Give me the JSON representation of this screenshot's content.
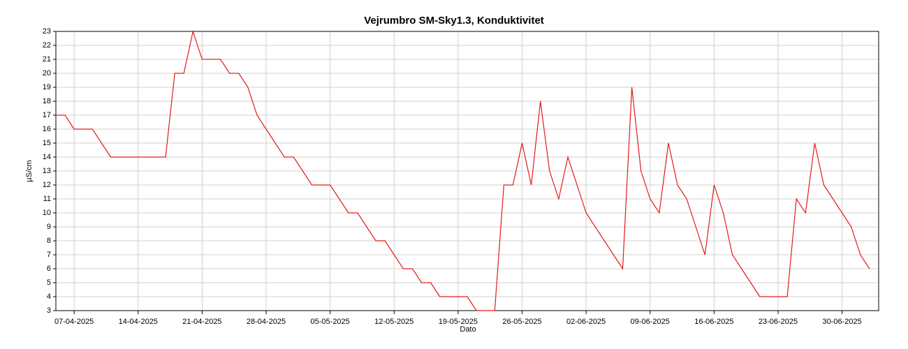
{
  "chart_data": {
    "type": "line",
    "title": "Vejrumbro SM-Sky1.3, Konduktivitet",
    "x_label": "Dato",
    "y_label": "µS/cm",
    "color": "#e41a1a",
    "grid": true,
    "x": [
      "05-04-2025",
      "06-04-2025",
      "07-04-2025",
      "08-04-2025",
      "09-04-2025",
      "10-04-2025",
      "11-04-2025",
      "12-04-2025",
      "13-04-2025",
      "14-04-2025",
      "15-04-2025",
      "16-04-2025",
      "17-04-2025",
      "18-04-2025",
      "19-04-2025",
      "20-04-2025",
      "21-04-2025",
      "22-04-2025",
      "23-04-2025",
      "24-04-2025",
      "25-04-2025",
      "26-04-2025",
      "27-04-2025",
      "28-04-2025",
      "29-04-2025",
      "30-04-2025",
      "01-05-2025",
      "02-05-2025",
      "03-05-2025",
      "04-05-2025",
      "05-05-2025",
      "06-05-2025",
      "07-05-2025",
      "08-05-2025",
      "09-05-2025",
      "10-05-2025",
      "11-05-2025",
      "12-05-2025",
      "13-05-2025",
      "14-05-2025",
      "15-05-2025",
      "16-05-2025",
      "17-05-2025",
      "18-05-2025",
      "19-05-2025",
      "20-05-2025",
      "21-05-2025",
      "22-05-2025",
      "23-05-2025",
      "24-05-2025",
      "25-05-2025",
      "26-05-2025",
      "27-05-2025",
      "28-05-2025",
      "29-05-2025",
      "30-05-2025",
      "31-05-2025",
      "01-06-2025",
      "02-06-2025",
      "03-06-2025",
      "04-06-2025",
      "05-06-2025",
      "06-06-2025",
      "07-06-2025",
      "08-06-2025",
      "09-06-2025",
      "10-06-2025",
      "11-06-2025",
      "12-06-2025",
      "13-06-2025",
      "14-06-2025",
      "15-06-2025",
      "16-06-2025",
      "17-06-2025",
      "18-06-2025",
      "19-06-2025",
      "20-06-2025",
      "21-06-2025",
      "22-06-2025",
      "23-06-2025",
      "24-06-2025",
      "25-06-2025",
      "26-06-2025",
      "27-06-2025",
      "28-06-2025",
      "29-06-2025",
      "30-06-2025",
      "01-07-2025",
      "02-07-2025",
      "03-07-2025"
    ],
    "values": [
      17,
      17,
      16,
      16,
      16,
      15,
      14,
      14,
      14,
      14,
      14,
      14,
      14,
      20,
      20,
      23,
      21,
      21,
      21,
      20,
      20,
      19,
      17,
      16,
      15,
      14,
      14,
      13,
      12,
      12,
      12,
      11,
      10,
      10,
      9,
      8,
      8,
      7,
      6,
      6,
      5,
      5,
      4,
      4,
      4,
      4,
      3,
      3,
      3,
      12,
      12,
      15,
      12,
      18,
      13,
      11,
      14,
      12,
      10,
      9,
      8,
      7,
      6,
      19,
      13,
      11,
      10,
      15,
      12,
      11,
      9,
      7,
      12,
      10,
      7,
      6,
      5,
      4,
      4,
      4,
      4,
      11,
      10,
      15,
      12,
      11,
      10,
      9,
      7,
      6
    ],
    "xlim": [
      "05-04-2025",
      "04-07-2025"
    ],
    "xticks": [
      "07-04-2025",
      "14-04-2025",
      "21-04-2025",
      "28-04-2025",
      "05-05-2025",
      "12-05-2025",
      "19-05-2025",
      "26-05-2025",
      "02-06-2025",
      "09-06-2025",
      "16-06-2025",
      "23-06-2025",
      "30-06-2025"
    ],
    "ylim": [
      3,
      23
    ],
    "yticks": [
      3,
      4,
      5,
      6,
      7,
      8,
      9,
      10,
      11,
      12,
      13,
      14,
      15,
      16,
      17,
      18,
      19,
      20,
      21,
      22,
      23
    ]
  }
}
